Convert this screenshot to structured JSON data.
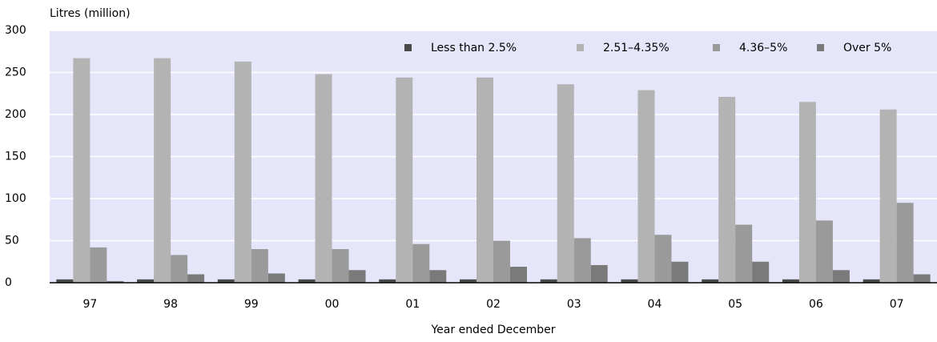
{
  "chart_data": {
    "type": "bar",
    "y_axis_label": "Litres (million)",
    "x_axis_label": "Year ended December",
    "categories": [
      "97",
      "98",
      "99",
      "00",
      "01",
      "02",
      "03",
      "04",
      "05",
      "06",
      "07"
    ],
    "series": [
      {
        "name": "Less than 2.5%",
        "color": "#4a4a4a",
        "values": [
          4,
          4,
          4,
          4,
          4,
          4,
          4,
          4,
          4,
          4,
          4
        ]
      },
      {
        "name": "2.51–4.35%",
        "color": "#b3b3b3",
        "values": [
          267,
          267,
          263,
          248,
          244,
          244,
          236,
          229,
          221,
          215,
          206
        ]
      },
      {
        "name": "4.36–5%",
        "color": "#9a9a9a",
        "values": [
          42,
          33,
          40,
          40,
          46,
          50,
          53,
          57,
          69,
          74,
          95
        ]
      },
      {
        "name": "Over 5%",
        "color": "#7a7a7a",
        "values": [
          2,
          10,
          11,
          15,
          15,
          19,
          21,
          25,
          25,
          15,
          10
        ]
      }
    ],
    "ylim": [
      0,
      300
    ],
    "yticks": [
      0,
      50,
      100,
      150,
      200,
      250,
      300
    ],
    "grid": true,
    "legend": "top-right"
  }
}
